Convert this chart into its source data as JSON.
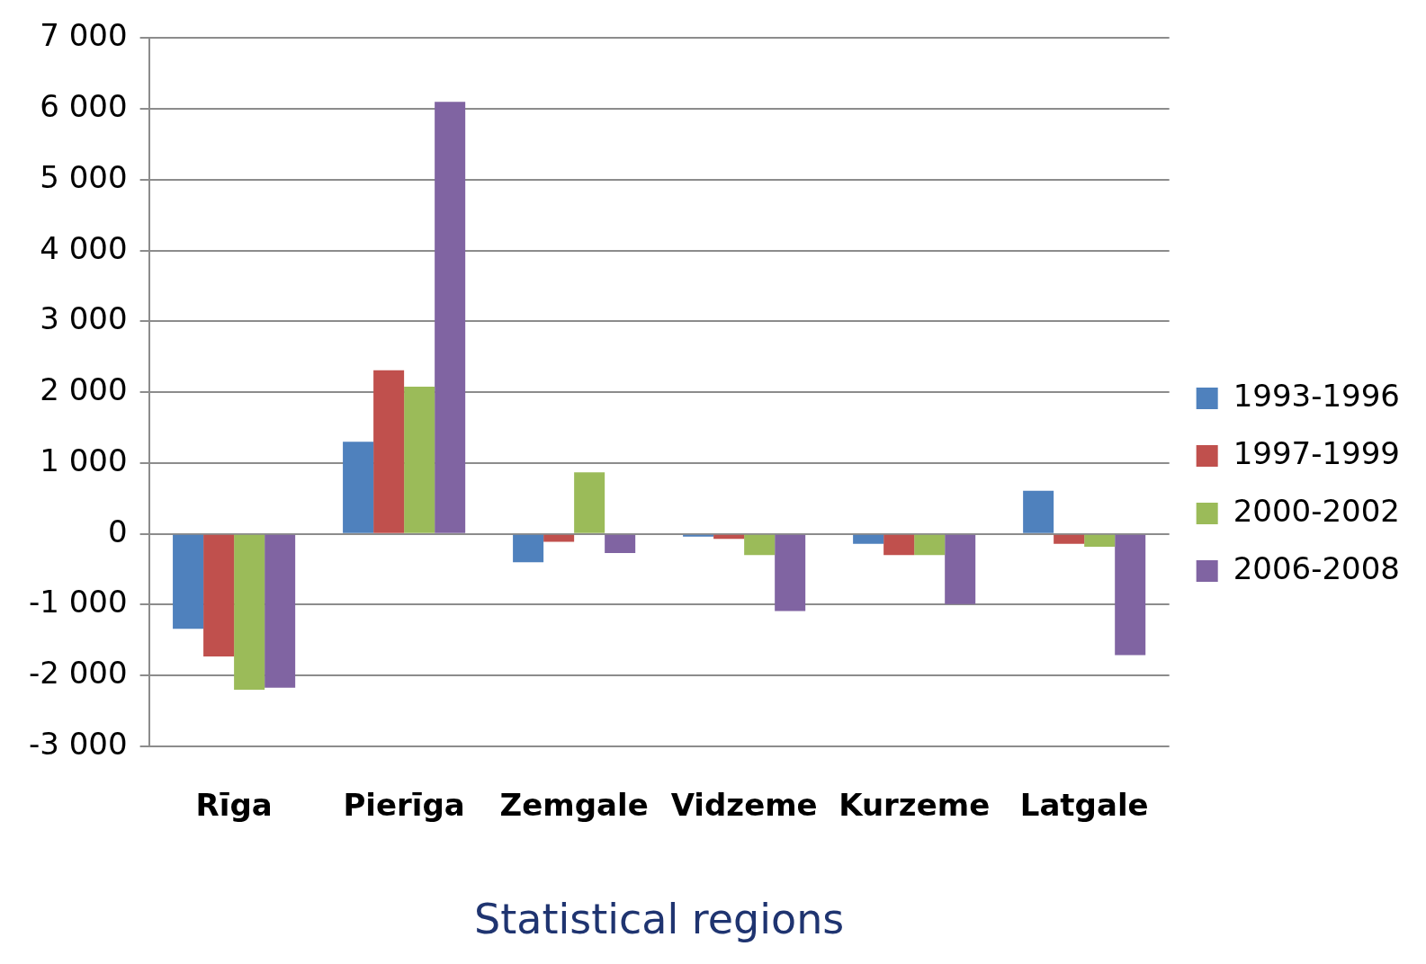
{
  "chart_data": {
    "type": "bar",
    "xlabel": "Statistical regions",
    "categories": [
      "Rīga",
      "Pierīga",
      "Zemgale",
      "Vidzeme",
      "Kurzeme",
      "Latgale"
    ],
    "series": [
      {
        "name": "1993-1996",
        "color": "#4f81bd",
        "values": [
          -1340,
          1300,
          -400,
          -40,
          -140,
          610
        ]
      },
      {
        "name": "1997-1999",
        "color": "#c0504d",
        "values": [
          -1730,
          2310,
          -110,
          -70,
          -300,
          -140
        ]
      },
      {
        "name": "2000-2002",
        "color": "#9bbb59",
        "values": [
          -2200,
          2080,
          870,
          -300,
          -300,
          -180
        ]
      },
      {
        "name": "2006-2008",
        "color": "#8064a2",
        "values": [
          -2170,
          6100,
          -270,
          -1090,
          -990,
          -1710
        ]
      }
    ],
    "ylim": [
      -3000,
      7000
    ],
    "yticks": [
      {
        "value": -3000,
        "label": "-3 000"
      },
      {
        "value": -2000,
        "label": "-2 000"
      },
      {
        "value": -1000,
        "label": "-1 000"
      },
      0,
      {
        "value": 1000,
        "label": "1 000"
      },
      {
        "value": 2000,
        "label": "2 000"
      },
      {
        "value": 3000,
        "label": "3 000"
      },
      {
        "value": 4000,
        "label": "4 000"
      },
      {
        "value": 5000,
        "label": "5 000"
      },
      {
        "value": 6000,
        "label": "6 000"
      },
      {
        "value": 7000,
        "label": "7 000"
      }
    ],
    "grid": "y",
    "legend": "right"
  }
}
